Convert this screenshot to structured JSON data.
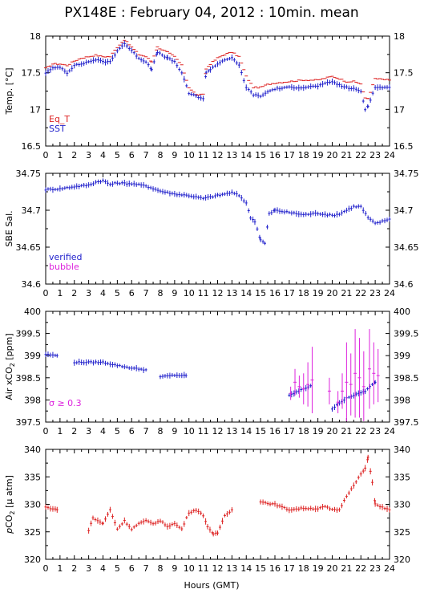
{
  "title": "PX148E : February 04, 2012 : 10min. mean",
  "xlabel": "Hours (GMT)",
  "colors": {
    "blue": "#2222cc",
    "red": "#dd2222",
    "magenta": "#dd22dd",
    "axis": "#000000"
  },
  "chart_data": [
    {
      "type": "scatter",
      "id": "temp",
      "ylabel": "Temp. [°C]",
      "xlim": [
        0,
        24
      ],
      "ylim": [
        16.5,
        18
      ],
      "yticks": [
        "16.5",
        "17",
        "17.5",
        "18"
      ],
      "xticks": [
        "0",
        "1",
        "2",
        "3",
        "4",
        "5",
        "6",
        "7",
        "8",
        "9",
        "10",
        "11",
        "12",
        "13",
        "14",
        "15",
        "16",
        "17",
        "18",
        "19",
        "20",
        "21",
        "22",
        "23",
        "24"
      ],
      "legend": [
        {
          "label": "Eq_T",
          "color": "#dd2222"
        },
        {
          "label": "SST",
          "color": "#2222cc"
        }
      ],
      "series": [
        {
          "name": "Eq_T",
          "color": "#dd2222",
          "marker": "dash",
          "knots": [
            [
              0,
              17.56
            ],
            [
              0.5,
              17.62
            ],
            [
              1.0,
              17.62
            ],
            [
              1.5,
              17.6
            ],
            [
              2.0,
              17.66
            ],
            [
              2.5,
              17.7
            ],
            [
              3.0,
              17.72
            ],
            [
              3.5,
              17.74
            ],
            [
              4.0,
              17.72
            ],
            [
              4.5,
              17.72
            ],
            [
              5.0,
              17.85
            ],
            [
              5.5,
              17.95
            ],
            [
              6.0,
              17.85
            ],
            [
              6.5,
              17.75
            ],
            [
              7.0,
              17.72
            ],
            [
              7.4,
              17.65
            ],
            [
              7.8,
              17.85
            ],
            [
              8.5,
              17.78
            ],
            [
              9.0,
              17.72
            ],
            [
              9.5,
              17.6
            ],
            [
              10.0,
              17.3
            ],
            [
              10.5,
              17.2
            ],
            [
              11.0,
              17.2
            ],
            [
              11.2,
              17.55
            ],
            [
              11.5,
              17.62
            ],
            [
              12.0,
              17.7
            ],
            [
              12.5,
              17.75
            ],
            [
              13.0,
              17.78
            ],
            [
              13.5,
              17.72
            ],
            [
              14.0,
              17.45
            ],
            [
              14.5,
              17.3
            ],
            [
              15.0,
              17.3
            ],
            [
              15.5,
              17.34
            ],
            [
              16.0,
              17.36
            ],
            [
              17.0,
              17.38
            ],
            [
              18.0,
              17.4
            ],
            [
              19.0,
              17.4
            ],
            [
              20.0,
              17.45
            ],
            [
              20.5,
              17.42
            ],
            [
              21.0,
              17.38
            ],
            [
              21.5,
              17.38
            ],
            [
              22.0,
              17.35
            ],
            [
              22.3,
              17.15
            ],
            [
              22.5,
              17.15
            ],
            [
              23.0,
              17.42
            ],
            [
              24.0,
              17.4
            ]
          ]
        },
        {
          "name": "SST",
          "color": "#2222cc",
          "marker": "cross",
          "knots": [
            [
              0,
              17.5
            ],
            [
              0.5,
              17.56
            ],
            [
              1.0,
              17.58
            ],
            [
              1.5,
              17.5
            ],
            [
              2.0,
              17.6
            ],
            [
              2.5,
              17.62
            ],
            [
              3.0,
              17.65
            ],
            [
              3.5,
              17.68
            ],
            [
              4.0,
              17.65
            ],
            [
              4.5,
              17.65
            ],
            [
              5.0,
              17.8
            ],
            [
              5.5,
              17.9
            ],
            [
              6.0,
              17.8
            ],
            [
              6.5,
              17.7
            ],
            [
              7.0,
              17.65
            ],
            [
              7.4,
              17.55
            ],
            [
              7.8,
              17.78
            ],
            [
              8.5,
              17.7
            ],
            [
              9.0,
              17.65
            ],
            [
              9.5,
              17.5
            ],
            [
              10.0,
              17.22
            ],
            [
              10.5,
              17.18
            ],
            [
              11.0,
              17.15
            ],
            [
              11.2,
              17.5
            ],
            [
              11.5,
              17.55
            ],
            [
              12.0,
              17.62
            ],
            [
              12.5,
              17.68
            ],
            [
              13.0,
              17.7
            ],
            [
              13.5,
              17.6
            ],
            [
              14.0,
              17.3
            ],
            [
              14.5,
              17.2
            ],
            [
              15.0,
              17.18
            ],
            [
              15.5,
              17.24
            ],
            [
              16.0,
              17.28
            ],
            [
              17.0,
              17.3
            ],
            [
              18.0,
              17.3
            ],
            [
              19.0,
              17.32
            ],
            [
              20.0,
              17.38
            ],
            [
              20.5,
              17.33
            ],
            [
              21.0,
              17.3
            ],
            [
              21.5,
              17.28
            ],
            [
              22.0,
              17.25
            ],
            [
              22.3,
              17.0
            ],
            [
              22.5,
              17.05
            ],
            [
              23.0,
              17.3
            ],
            [
              24.0,
              17.3
            ]
          ]
        }
      ]
    },
    {
      "type": "scatter",
      "id": "sal",
      "ylabel": "SBE Sal.",
      "xlim": [
        0,
        24
      ],
      "ylim": [
        34.6,
        34.75
      ],
      "yticks": [
        "34.6",
        "34.65",
        "34.7",
        "34.75"
      ],
      "xticks": [
        "0",
        "1",
        "2",
        "3",
        "4",
        "5",
        "6",
        "7",
        "8",
        "9",
        "10",
        "11",
        "12",
        "13",
        "14",
        "15",
        "16",
        "17",
        "18",
        "19",
        "20",
        "21",
        "22",
        "23",
        "24"
      ],
      "legend": [
        {
          "label": "verified",
          "color": "#2222cc"
        },
        {
          "label": "bubble",
          "color": "#dd22dd"
        }
      ],
      "series": [
        {
          "name": "verified",
          "color": "#2222cc",
          "marker": "cross",
          "knots": [
            [
              0,
              34.728
            ],
            [
              1,
              34.729
            ],
            [
              2,
              34.732
            ],
            [
              3,
              34.734
            ],
            [
              3.5,
              34.738
            ],
            [
              4,
              34.74
            ],
            [
              4.5,
              34.735
            ],
            [
              5,
              34.737
            ],
            [
              6,
              34.736
            ],
            [
              7,
              34.733
            ],
            [
              8,
              34.726
            ],
            [
              9,
              34.722
            ],
            [
              10,
              34.72
            ],
            [
              11,
              34.716
            ],
            [
              12,
              34.72
            ],
            [
              13,
              34.724
            ],
            [
              13.5,
              34.72
            ],
            [
              14,
              34.71
            ],
            [
              14.3,
              34.69
            ],
            [
              14.6,
              34.685
            ],
            [
              15,
              34.66
            ],
            [
              15.3,
              34.655
            ],
            [
              15.6,
              34.695
            ],
            [
              16,
              34.7
            ],
            [
              17,
              34.697
            ],
            [
              18,
              34.694
            ],
            [
              19,
              34.696
            ],
            [
              20,
              34.693
            ],
            [
              20.5,
              34.695
            ],
            [
              21,
              34.7
            ],
            [
              21.5,
              34.705
            ],
            [
              22,
              34.705
            ],
            [
              22.5,
              34.69
            ],
            [
              23,
              34.682
            ],
            [
              24,
              34.688
            ]
          ]
        }
      ]
    },
    {
      "type": "scatter",
      "id": "xco2",
      "ylabel": "Air xCO",
      "ylabel_sub": "2",
      "ylabel_tail": " [ppm]",
      "annotation": "σ ≥ 0.3",
      "xlim": [
        0,
        24
      ],
      "ylim": [
        397.5,
        400
      ],
      "yticks": [
        "397.5",
        "398",
        "398.5",
        "399",
        "399.5",
        "400"
      ],
      "xticks": [
        "0",
        "1",
        "2",
        "3",
        "4",
        "5",
        "6",
        "7",
        "8",
        "9",
        "10",
        "11",
        "12",
        "13",
        "14",
        "15",
        "16",
        "17",
        "18",
        "19",
        "20",
        "21",
        "22",
        "23",
        "24"
      ],
      "series": [
        {
          "name": "",
          "color": "#2222cc",
          "marker": "cross",
          "segments": [
            [
              [
                0,
                399.03
              ],
              [
                0.8,
                399.0
              ]
            ],
            [
              [
                2,
                398.85
              ],
              [
                3,
                398.85
              ],
              [
                4,
                398.85
              ],
              [
                5,
                398.78
              ],
              [
                6,
                398.72
              ],
              [
                7,
                398.68
              ]
            ],
            [
              [
                8,
                398.52
              ],
              [
                9,
                398.56
              ],
              [
                9.8,
                398.55
              ]
            ],
            [
              [
                17,
                398.1
              ],
              [
                18,
                398.25
              ],
              [
                18.5,
                398.32
              ]
            ],
            [
              [
                20,
                397.8
              ],
              [
                21,
                398.05
              ],
              [
                21.5,
                398.1
              ],
              [
                22.3,
                398.2
              ],
              [
                23,
                398.4
              ]
            ]
          ]
        },
        {
          "name": "",
          "color": "#dd22dd",
          "marker": "errbar",
          "points": [
            [
              17.1,
              398.15,
              0.15
            ],
            [
              17.4,
              398.4,
              0.3
            ],
            [
              17.7,
              398.3,
              0.25
            ],
            [
              18.0,
              398.25,
              0.35
            ],
            [
              18.3,
              398.35,
              0.5
            ],
            [
              18.6,
              398.45,
              0.75
            ],
            [
              19.8,
              398.2,
              0.3
            ],
            [
              20.4,
              397.95,
              0.25
            ],
            [
              20.7,
              398.2,
              0.4
            ],
            [
              21.0,
              398.4,
              0.9
            ],
            [
              21.3,
              398.35,
              0.7
            ],
            [
              21.6,
              398.6,
              1.0
            ],
            [
              21.9,
              398.5,
              0.9
            ],
            [
              22.2,
              398.3,
              0.8
            ],
            [
              22.6,
              398.7,
              0.9
            ],
            [
              22.9,
              398.6,
              0.7
            ],
            [
              23.2,
              398.55,
              0.6
            ]
          ]
        }
      ]
    },
    {
      "type": "scatter",
      "id": "pco2",
      "ylabel_pre": "p",
      "ylabel": "CO",
      "ylabel_sub": "2",
      "ylabel_tail": " [μ atm]",
      "xlim": [
        0,
        24
      ],
      "ylim": [
        320,
        340
      ],
      "yticks": [
        "320",
        "325",
        "330",
        "335",
        "340"
      ],
      "xticks": [
        "0",
        "1",
        "2",
        "3",
        "4",
        "5",
        "6",
        "7",
        "8",
        "9",
        "10",
        "11",
        "12",
        "13",
        "14",
        "15",
        "16",
        "17",
        "18",
        "19",
        "20",
        "21",
        "22",
        "23",
        "24"
      ],
      "series": [
        {
          "name": "",
          "color": "#dd2222",
          "marker": "cross",
          "segments": [
            [
              [
                0,
                329.5
              ],
              [
                0.8,
                329.0
              ]
            ],
            [
              [
                3,
                325.3
              ],
              [
                3.3,
                327.5
              ],
              [
                4,
                326.5
              ],
              [
                4.5,
                329.0
              ],
              [
                5,
                325.5
              ],
              [
                5.5,
                327.0
              ],
              [
                6,
                325.5
              ],
              [
                6.5,
                326.5
              ],
              [
                7,
                327.0
              ],
              [
                7.5,
                326.5
              ],
              [
                8,
                327.0
              ],
              [
                8.5,
                326.0
              ],
              [
                9,
                326.5
              ],
              [
                9.5,
                325.5
              ],
              [
                10,
                328.5
              ],
              [
                10.5,
                329.0
              ],
              [
                11,
                328.0
              ],
              [
                11.3,
                326.0
              ],
              [
                11.7,
                324.5
              ],
              [
                12,
                324.8
              ],
              [
                12.5,
                328.0
              ],
              [
                13,
                329.0
              ]
            ],
            [
              [
                15,
                330.5
              ],
              [
                15.5,
                330.2
              ],
              [
                16,
                330.0
              ],
              [
                16.5,
                329.5
              ],
              [
                17,
                329.0
              ],
              [
                18,
                329.3
              ],
              [
                19,
                329.2
              ],
              [
                19.5,
                329.6
              ],
              [
                20,
                329.0
              ],
              [
                20.5,
                329.0
              ],
              [
                21,
                331.5
              ],
              [
                21.5,
                333.5
              ],
              [
                22,
                335.5
              ],
              [
                22.3,
                336.5
              ],
              [
                22.5,
                338.5
              ],
              [
                22.8,
                334.0
              ],
              [
                23,
                330.0
              ],
              [
                24,
                329.0
              ]
            ]
          ]
        }
      ]
    }
  ]
}
